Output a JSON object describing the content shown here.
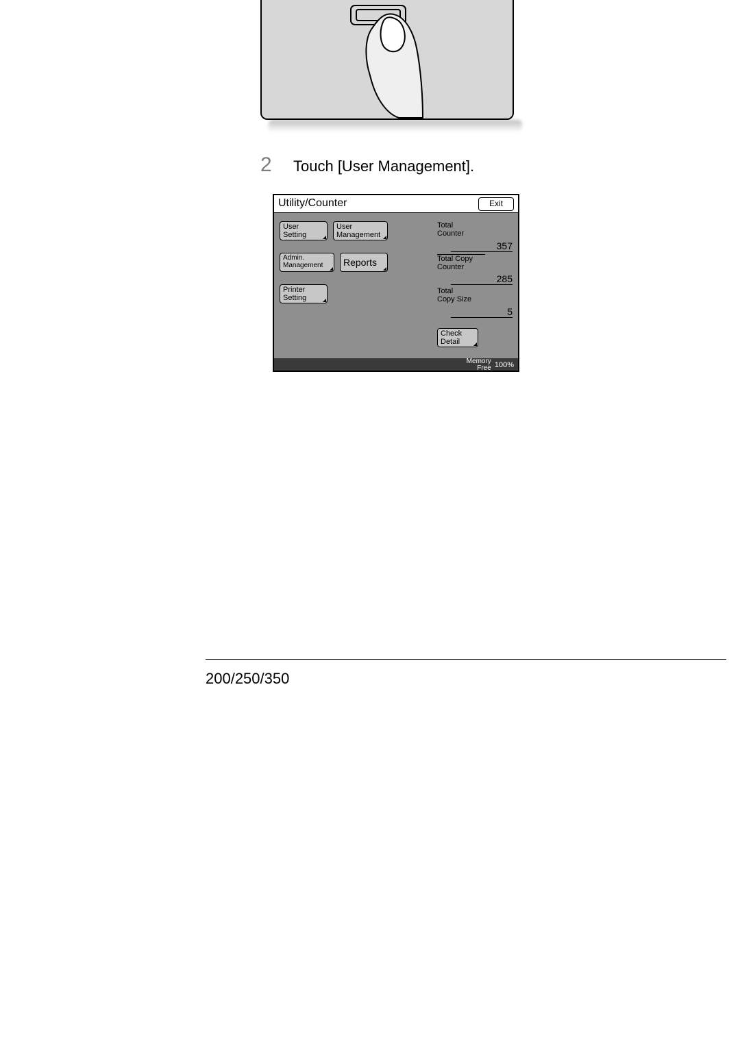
{
  "step": {
    "number": "2",
    "text": "Touch [User Management]."
  },
  "screen": {
    "title": "Utility/Counter",
    "exit": "Exit",
    "buttons": {
      "user_setting": "User\nSetting",
      "user_management": "User\nManagement",
      "admin_management": "Admin.\nManagement",
      "reports": "Reports",
      "printer_setting": "Printer\nSetting",
      "check_detail": "Check\nDetail"
    },
    "counters": {
      "total_counter_label": "Total\nCounter",
      "total_counter_value": "357",
      "total_copy_counter_label": "Total Copy\nCounter",
      "total_copy_counter_value": "285",
      "total_copy_size_label": "Total\nCopy Size",
      "total_copy_size_value": "5"
    },
    "footer": {
      "memory_label": "Memory\nFree",
      "memory_value": "100%"
    }
  },
  "page_footer": {
    "model": "200/250/350"
  },
  "colors": {
    "panel_bg": "#d7d7d7",
    "screen_bg": "#8f8f8f",
    "button_bg": "#c7c7c7",
    "footer_bg": "#3a3a3a"
  }
}
